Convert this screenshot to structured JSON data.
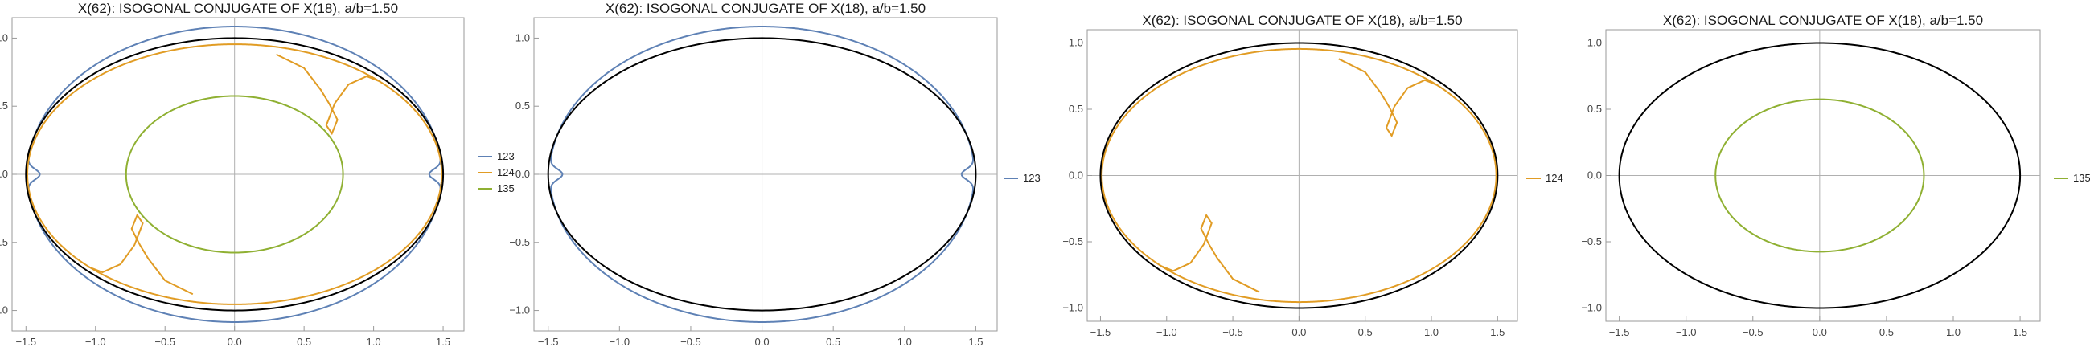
{
  "chart_data": [
    {
      "type": "line",
      "title": "X(62): ISOGONAL CONJUGATE OF X(18), a/b=1.50",
      "xlim": [
        -1.6,
        1.65
      ],
      "ylim": [
        -1.15,
        1.15
      ],
      "xticks": [
        "-1.5",
        "-1.0",
        "-0.5",
        "0.0",
        "0.5",
        "1.0",
        "1.5"
      ],
      "yticks": [
        "-1.0",
        "-0.5",
        "0.0",
        "0.5",
        "1.0"
      ],
      "grid": false,
      "legend": "right",
      "reference": {
        "type": "ellipse",
        "a": 1.5,
        "b": 1.0,
        "color": "#000000"
      },
      "series": [
        {
          "name": "123",
          "color": "#5e81b5",
          "kind": "curve123"
        },
        {
          "name": "124",
          "color": "#e19c24",
          "kind": "curve124"
        },
        {
          "name": "135",
          "color": "#8fb032",
          "kind": "ellipse",
          "a": 0.78,
          "b": 0.575
        }
      ]
    },
    {
      "type": "line",
      "title": "X(62): ISOGONAL CONJUGATE OF X(18), a/b=1.50",
      "xlim": [
        -1.6,
        1.65
      ],
      "ylim": [
        -1.15,
        1.15
      ],
      "xticks": [
        "-1.5",
        "-1.0",
        "-0.5",
        "0.0",
        "0.5",
        "1.0",
        "1.5"
      ],
      "yticks": [
        "-1.0",
        "-0.5",
        "0.0",
        "0.5",
        "1.0"
      ],
      "grid": false,
      "legend": "right",
      "reference": {
        "type": "ellipse",
        "a": 1.5,
        "b": 1.0,
        "color": "#000000"
      },
      "series": [
        {
          "name": "123",
          "color": "#5e81b5",
          "kind": "curve123"
        }
      ]
    },
    {
      "type": "line",
      "title": "X(62): ISOGONAL CONJUGATE OF X(18), a/b=1.50",
      "xlim": [
        -1.6,
        1.65
      ],
      "ylim": [
        -1.1,
        1.1
      ],
      "xticks": [
        "-1.5",
        "-1.0",
        "-0.5",
        "0.0",
        "0.5",
        "1.0",
        "1.5"
      ],
      "yticks": [
        "-1.0",
        "-0.5",
        "0.0",
        "0.5",
        "1.0"
      ],
      "grid": false,
      "legend": "right",
      "reference": {
        "type": "ellipse",
        "a": 1.5,
        "b": 1.0,
        "color": "#000000"
      },
      "series": [
        {
          "name": "124",
          "color": "#e19c24",
          "kind": "curve124"
        }
      ]
    },
    {
      "type": "line",
      "title": "X(62): ISOGONAL CONJUGATE OF X(18), a/b=1.50",
      "xlim": [
        -1.6,
        1.65
      ],
      "ylim": [
        -1.1,
        1.1
      ],
      "xticks": [
        "-1.5",
        "-1.0",
        "-0.5",
        "0.0",
        "0.5",
        "1.0",
        "1.5"
      ],
      "yticks": [
        "-1.0",
        "-0.5",
        "0.0",
        "0.5",
        "1.0"
      ],
      "grid": false,
      "legend": "right",
      "reference": {
        "type": "ellipse",
        "a": 1.5,
        "b": 1.0,
        "color": "#000000"
      },
      "series": [
        {
          "name": "135",
          "color": "#8fb032",
          "kind": "ellipse",
          "a": 0.78,
          "b": 0.575
        }
      ]
    }
  ]
}
